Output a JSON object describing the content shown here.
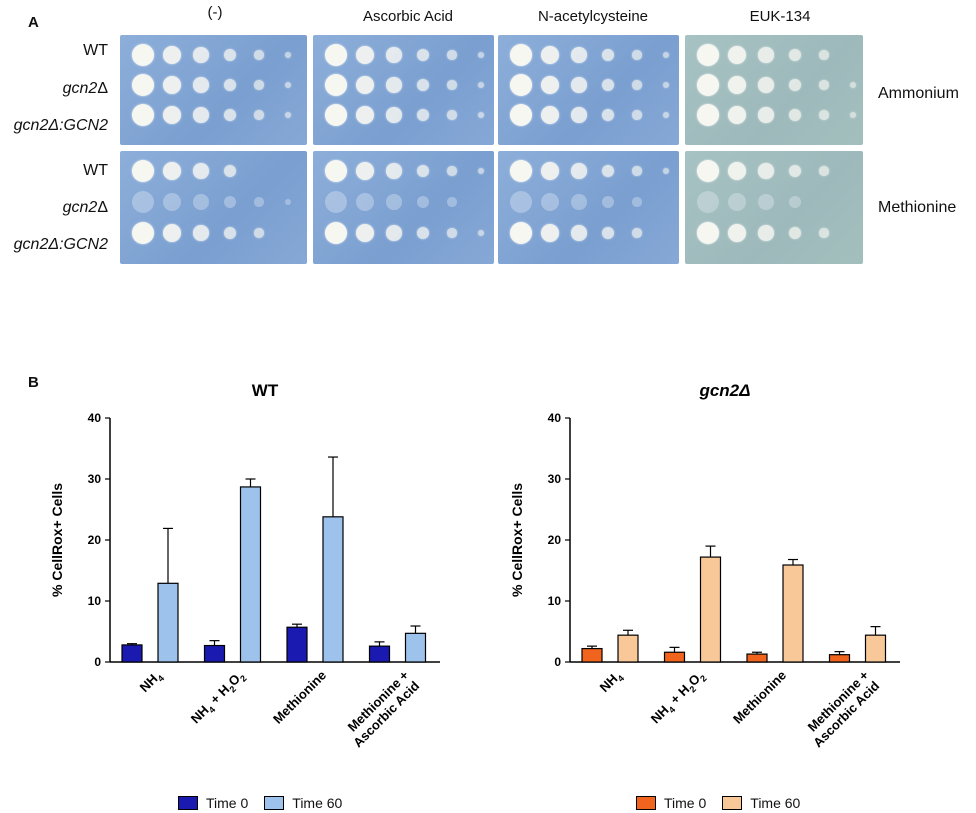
{
  "panel_a": {
    "letter": "A",
    "plate_headers": [
      "(-)",
      "Ascorbic Acid",
      "N-acetylcysteine",
      "EUK-134"
    ],
    "strains": [
      {
        "prefix": "WT",
        "suffix": ""
      },
      {
        "prefix": "gcn2",
        "suffix": "Δ"
      },
      {
        "prefix": "gcn2Δ",
        "suffix": ":GCN2"
      }
    ],
    "conditions": [
      "Ammonium",
      "Methionine"
    ],
    "colors": {
      "plate_blue": "#7ea2d3",
      "plate_green": "#a2bebd",
      "colony": "#f7f7f2"
    }
  },
  "panel_b": {
    "letter": "B",
    "legend_label_t0": "Time 0",
    "legend_label_t60": "Time 60"
  },
  "chart_data": [
    {
      "type": "bar",
      "title": "WT",
      "ylabel": "% CellRox+ Cells",
      "ylim": [
        0,
        40
      ],
      "yticks": [
        0,
        10,
        20,
        30,
        40
      ],
      "categories": [
        "NH4",
        "NH4 + H2O2",
        "Methionine",
        "Methionine + Ascorbic Acid"
      ],
      "series": [
        {
          "name": "Time 0",
          "color": "#1a1ab0",
          "values": [
            2.8,
            2.7,
            5.7,
            2.6
          ],
          "errors": [
            0.2,
            0.8,
            0.5,
            0.7
          ]
        },
        {
          "name": "Time 60",
          "color": "#9dc3ec",
          "values": [
            12.9,
            28.7,
            23.8,
            4.7
          ],
          "errors": [
            9.0,
            1.3,
            9.8,
            1.2
          ]
        }
      ]
    },
    {
      "type": "bar",
      "title": "gcn2Δ",
      "ylabel": "% CellRox+ Cells",
      "ylim": [
        0,
        40
      ],
      "yticks": [
        0,
        10,
        20,
        30,
        40
      ],
      "categories": [
        "NH4",
        "NH4 + H2O2",
        "Methionine",
        "Methionine + Ascorbic Acid"
      ],
      "series": [
        {
          "name": "Time 0",
          "color": "#f0641e",
          "values": [
            2.2,
            1.6,
            1.3,
            1.2
          ],
          "errors": [
            0.4,
            0.8,
            0.3,
            0.5
          ]
        },
        {
          "name": "Time 60",
          "color": "#f9c898",
          "values": [
            4.4,
            17.2,
            15.9,
            4.4
          ],
          "errors": [
            0.8,
            1.8,
            0.9,
            1.4
          ]
        }
      ]
    }
  ]
}
